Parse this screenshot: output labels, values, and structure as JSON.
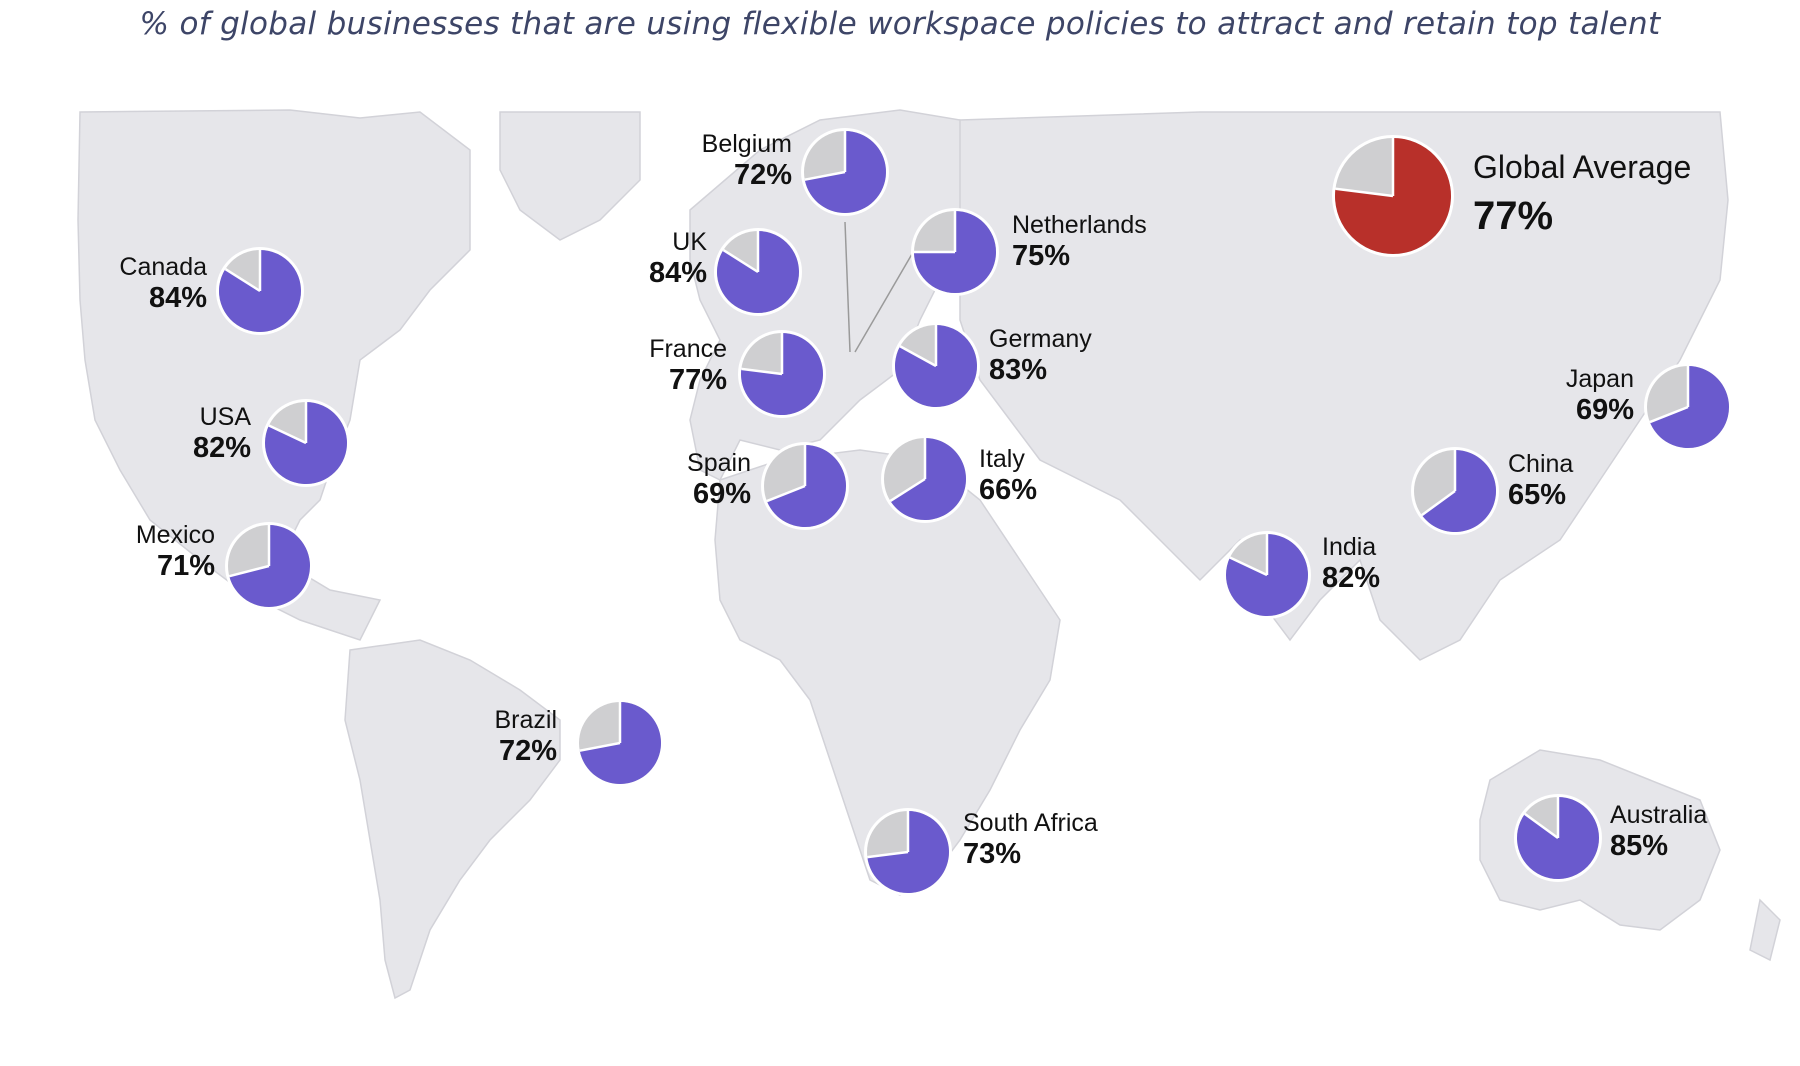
{
  "title": "% of global businesses that are using flexible workspace policies to attract and retain top talent",
  "colors": {
    "country_fill": "#6a5acd",
    "global_fill": "#b8302a",
    "remainder_fill": "#cfcfd1",
    "land": "#e6e6ea",
    "border": "#d2d2d8"
  },
  "chart_data": {
    "type": "pie",
    "series": [
      {
        "category": "Belgium",
        "value": 72,
        "label": "72%"
      },
      {
        "category": "Netherlands",
        "value": 75,
        "label": "75%"
      },
      {
        "category": "UK",
        "value": 84,
        "label": "84%"
      },
      {
        "category": "Canada",
        "value": 84,
        "label": "84%"
      },
      {
        "category": "France",
        "value": 77,
        "label": "77%"
      },
      {
        "category": "Germany",
        "value": 83,
        "label": "83%"
      },
      {
        "category": "USA",
        "value": 82,
        "label": "82%"
      },
      {
        "category": "Spain",
        "value": 69,
        "label": "69%"
      },
      {
        "category": "Italy",
        "value": 66,
        "label": "66%"
      },
      {
        "category": "Japan",
        "value": 69,
        "label": "69%"
      },
      {
        "category": "China",
        "value": 65,
        "label": "65%"
      },
      {
        "category": "Mexico",
        "value": 71,
        "label": "71%"
      },
      {
        "category": "India",
        "value": 82,
        "label": "82%"
      },
      {
        "category": "Brazil",
        "value": 72,
        "label": "72%"
      },
      {
        "category": "South Africa",
        "value": 73,
        "label": "73%"
      },
      {
        "category": "Australia",
        "value": 85,
        "label": "85%"
      }
    ],
    "global": {
      "category": "Global Average",
      "value": 77,
      "label": "77%"
    }
  }
}
